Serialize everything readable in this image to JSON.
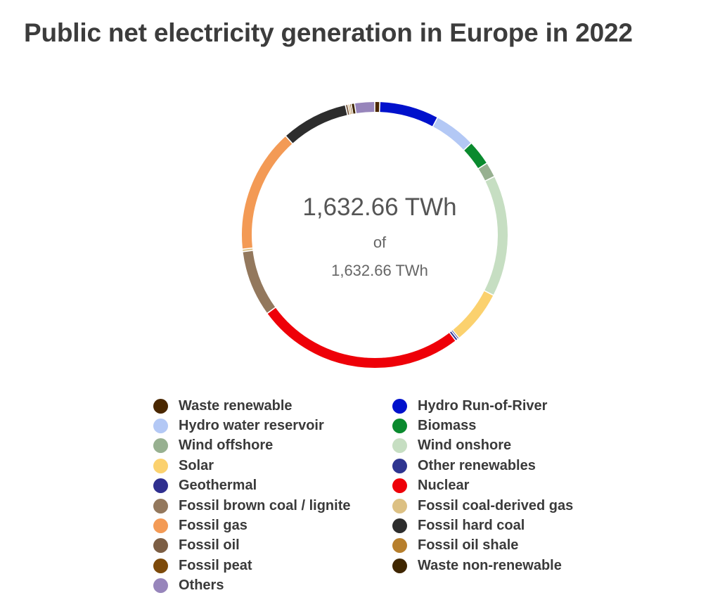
{
  "chart_data": {
    "type": "pie",
    "title": "Public net electricity generation in Europe in 2022",
    "center_value": "1,632.66 TWh",
    "center_of": "of",
    "center_total": "1,632.66 TWh",
    "categories": [
      "Waste renewable",
      "Hydro Run-of-River",
      "Hydro water reservoir",
      "Biomass",
      "Wind offshore",
      "Wind onshore",
      "Solar",
      "Other renewables",
      "Geothermal",
      "Nuclear",
      "Fossil brown coal / lignite",
      "Fossil coal-derived gas",
      "Fossil gas",
      "Fossil hard coal",
      "Fossil oil",
      "Fossil oil shale",
      "Fossil peat",
      "Waste non-renewable",
      "Others"
    ],
    "values": [
      0.6,
      7.1,
      5.0,
      3.0,
      1.8,
      14.5,
      6.5,
      0.2,
      0.3,
      25.0,
      7.9,
      0.3,
      14.8,
      8.0,
      0.3,
      0.2,
      0.2,
      0.4,
      2.4
    ],
    "colors": [
      "#4a2700",
      "#0011cc",
      "#b3c8f5",
      "#0a8a2e",
      "#97b090",
      "#c6dec2",
      "#fbd16e",
      "#2e3590",
      "#2f2f8f",
      "#ee0008",
      "#93785d",
      "#dcc083",
      "#f39a55",
      "#2d2d2d",
      "#7c5e44",
      "#b77f2c",
      "#7d4a0a",
      "#3f2600",
      "#9785bb"
    ],
    "legend_order": [
      "Waste renewable",
      "Hydro Run-of-River",
      "Hydro water reservoir",
      "Biomass",
      "Wind offshore",
      "Wind onshore",
      "Solar",
      "Other renewables",
      "Geothermal",
      "Nuclear",
      "Fossil brown coal / lignite",
      "Fossil coal-derived gas",
      "Fossil gas",
      "Fossil hard coal",
      "Fossil oil",
      "Fossil oil shale",
      "Fossil peat",
      "Waste non-renewable",
      "Others"
    ],
    "unit": "TWh"
  }
}
